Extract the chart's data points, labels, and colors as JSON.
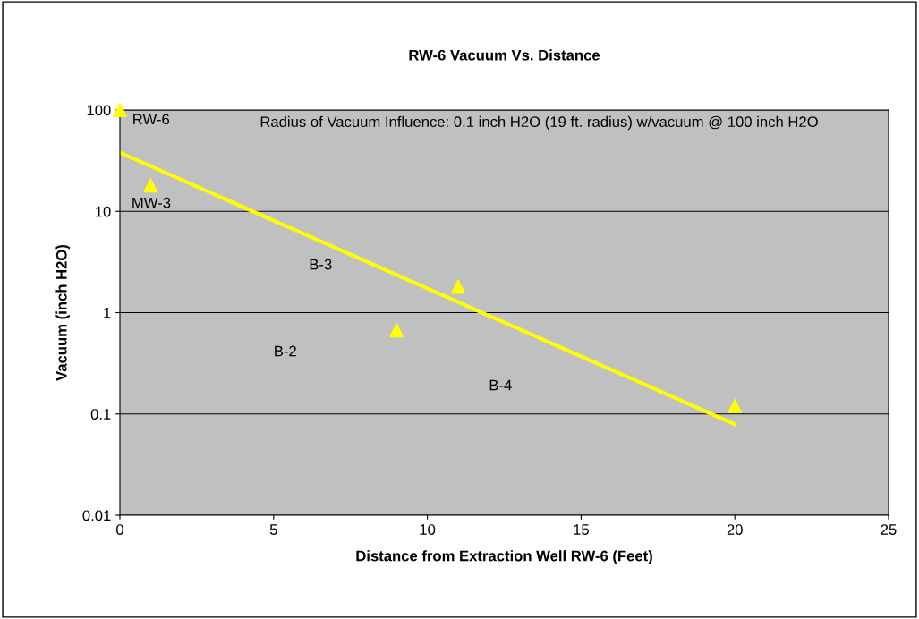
{
  "chart_data": {
    "type": "scatter",
    "title": "RW-6 Vacuum Vs. Distance",
    "xlabel": "Distance from Extraction Well RW-6 (Feet)",
    "ylabel": "Vacuum (inch H2O)",
    "series": [
      {
        "color": "#ffff00",
        "marker": "triangle",
        "x": [
          0,
          1,
          9,
          11,
          20
        ],
        "values": [
          100,
          18,
          0.67,
          1.8,
          0.12
        ]
      },
      {
        "type": "line",
        "color": "#ffff00",
        "marker": "none",
        "line_style": "solid",
        "x": [
          0,
          20
        ],
        "values": [
          38,
          0.079
        ]
      }
    ],
    "annotations": [
      "RW-6",
      "MW-3",
      "B-3",
      "B-2",
      "B-4",
      "Radius of Vacuum Influence: 0.1 inch H2O (19 ft. radius) w/vacuum @ 100 inch H2O"
    ],
    "log": "y",
    "xlim": [
      0,
      25
    ],
    "xticks": [
      0,
      5,
      10,
      15,
      20,
      25
    ],
    "ylim": [
      0.01,
      100
    ],
    "yticks": [
      {
        "value": 0.01,
        "label": "0.01"
      },
      {
        "value": 0.1,
        "label": "0.1"
      },
      {
        "value": 1,
        "label": "1"
      },
      {
        "value": 10,
        "label": "10"
      },
      {
        "value": 100,
        "label": "100"
      }
    ],
    "grid": "y",
    "legend": false
  }
}
